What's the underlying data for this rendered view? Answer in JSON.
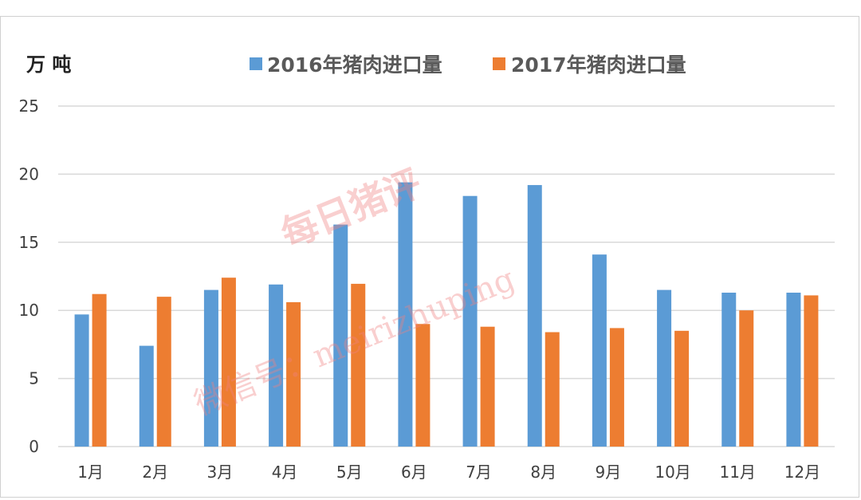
{
  "colors": {
    "series_2016": "#5b9bd5",
    "series_2017": "#ed7d31",
    "grid": "#d9d9d9"
  },
  "watermark": {
    "line1": "每日猪评",
    "line2": "微信号：meirizhuping"
  },
  "chart_data": {
    "type": "bar",
    "title": "",
    "unit_label": "万 吨",
    "ylabel": "",
    "xlabel": "",
    "ylim": [
      0,
      25
    ],
    "yticks": [
      0,
      5,
      10,
      15,
      20,
      25
    ],
    "grid": true,
    "legend_position": "top",
    "categories": [
      "1月",
      "2月",
      "3月",
      "4月",
      "5月",
      "6月",
      "7月",
      "8月",
      "9月",
      "10月",
      "11月",
      "12月"
    ],
    "series": [
      {
        "name": "2016年猪肉进口量",
        "color": "#5b9bd5",
        "values": [
          9.7,
          7.4,
          11.5,
          11.9,
          16.3,
          19.4,
          18.4,
          19.2,
          14.1,
          11.5,
          11.3,
          11.3
        ]
      },
      {
        "name": "2017年猪肉进口量",
        "color": "#ed7d31",
        "values": [
          11.2,
          11.0,
          12.4,
          10.6,
          11.95,
          9.0,
          8.8,
          8.4,
          8.7,
          8.5,
          10.0,
          11.1
        ]
      }
    ]
  }
}
